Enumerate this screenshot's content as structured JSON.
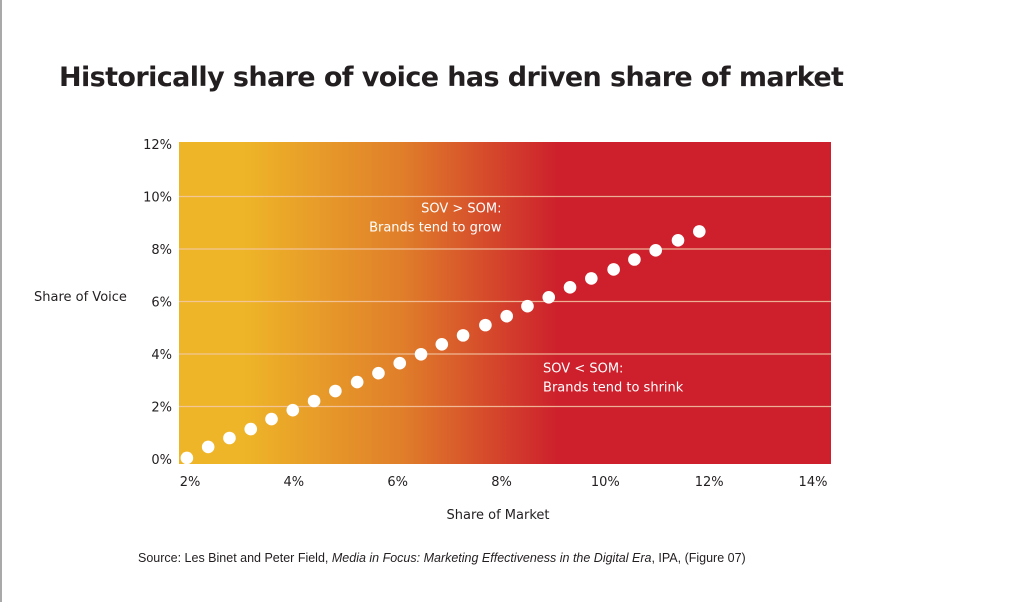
{
  "title": "Historically share of voice has driven share of market",
  "source": {
    "prefix": "Source: Les Binet and Peter Field, ",
    "italic": "Media in Focus: Marketing Effectiveness in the Digital Era",
    "suffix": ", IPA, (Figure 07)"
  },
  "colors": {
    "gradient_start": "#EEB528",
    "gradient_mid": "#E07F2A",
    "gradient_end": "#CD202C",
    "gridline": "#F5C9A8",
    "dot": "#FFFFFF",
    "text": "#231F20"
  },
  "chart_data": {
    "type": "scatter",
    "title": "Historically share of voice has driven share of market",
    "xlabel": "Share of Market",
    "ylabel": "Share of Voice",
    "xlim": [
      1.8,
      14.3
    ],
    "ylim": [
      0,
      12
    ],
    "xticks": [
      2,
      4,
      6,
      8,
      10,
      12,
      14
    ],
    "yticks": [
      0,
      2,
      4,
      6,
      8,
      10,
      12
    ],
    "xtick_labels": [
      "2%",
      "4%",
      "6%",
      "8%",
      "10%",
      "12%",
      "14%"
    ],
    "ytick_labels": [
      "0%",
      "2%",
      "4%",
      "6%",
      "8%",
      "10%",
      "12%"
    ],
    "grid": "horizontal",
    "background": "horizontal gradient yellow to orange to red",
    "annotations": [
      {
        "lines": [
          "SOV > SOM:",
          "Brands tend to grow"
        ],
        "align": "right",
        "x": 8.0,
        "y": 9.4
      },
      {
        "lines": [
          "SOV < SOM:",
          "Brands tend to shrink"
        ],
        "align": "left",
        "x": 8.8,
        "y": 3.3
      }
    ],
    "points": [
      {
        "x": 1.94,
        "y": 0.04
      },
      {
        "x": 2.35,
        "y": 0.46
      },
      {
        "x": 2.76,
        "y": 0.8
      },
      {
        "x": 3.17,
        "y": 1.14
      },
      {
        "x": 3.57,
        "y": 1.52
      },
      {
        "x": 3.98,
        "y": 1.86
      },
      {
        "x": 4.39,
        "y": 2.21
      },
      {
        "x": 4.8,
        "y": 2.59
      },
      {
        "x": 5.22,
        "y": 2.93
      },
      {
        "x": 5.63,
        "y": 3.27
      },
      {
        "x": 6.04,
        "y": 3.65
      },
      {
        "x": 6.45,
        "y": 3.99
      },
      {
        "x": 6.85,
        "y": 4.37
      },
      {
        "x": 7.26,
        "y": 4.71
      },
      {
        "x": 7.69,
        "y": 5.1
      },
      {
        "x": 8.1,
        "y": 5.44
      },
      {
        "x": 8.5,
        "y": 5.82
      },
      {
        "x": 8.91,
        "y": 6.16
      },
      {
        "x": 9.32,
        "y": 6.54
      },
      {
        "x": 9.73,
        "y": 6.88
      },
      {
        "x": 10.16,
        "y": 7.22
      },
      {
        "x": 10.56,
        "y": 7.6
      },
      {
        "x": 10.97,
        "y": 7.95
      },
      {
        "x": 11.4,
        "y": 8.33
      },
      {
        "x": 11.81,
        "y": 8.67
      }
    ]
  }
}
